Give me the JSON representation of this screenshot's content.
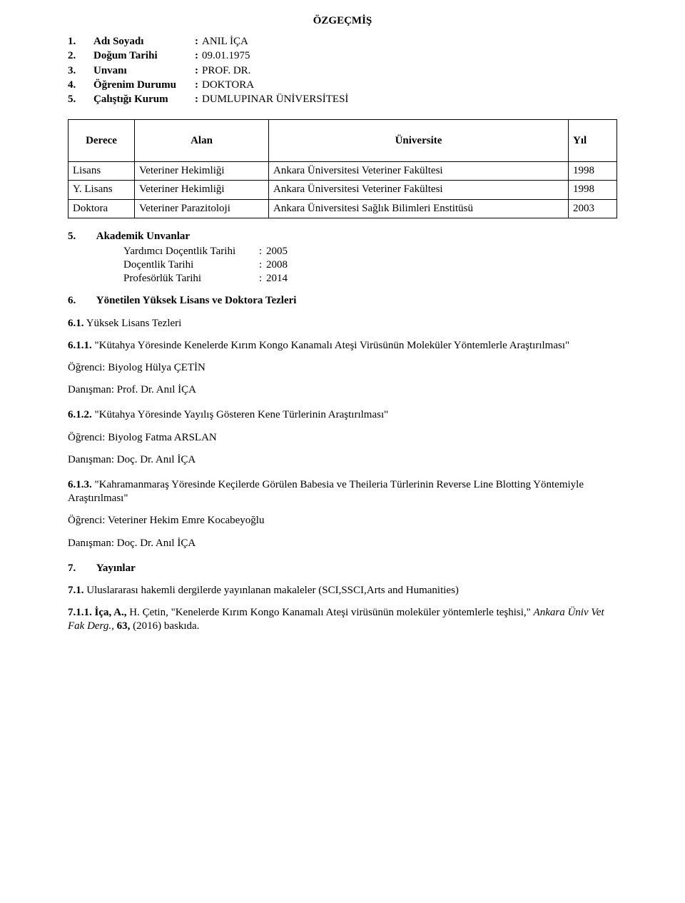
{
  "title": "ÖZGEÇMİŞ",
  "info": {
    "rows": [
      {
        "n": "1.",
        "label": "Adı Soyadı",
        "value": "ANIL İÇA"
      },
      {
        "n": "2.",
        "label": "Doğum Tarihi",
        "value": "09.01.1975"
      },
      {
        "n": "3.",
        "label": "Unvanı",
        "value": "PROF. DR."
      },
      {
        "n": "4.",
        "label": "Öğrenim Durumu",
        "value": "DOKTORA"
      },
      {
        "n": "5.",
        "label": "Çalıştığı Kurum",
        "value": "DUMLUPINAR ÜNİVERSİTESİ"
      }
    ]
  },
  "degree_table": {
    "headers": [
      "Derece",
      "Alan",
      "Üniversite",
      "Yıl"
    ],
    "rows": [
      [
        "Lisans",
        "Veteriner Hekimliği",
        "Ankara Üniversitesi Veteriner Fakültesi",
        "1998"
      ],
      [
        "Y. Lisans",
        "Veteriner Hekimliği",
        "Ankara Üniversitesi Veteriner Fakültesi",
        "1998"
      ],
      [
        "Doktora",
        "Veteriner Parazitoloji",
        "Ankara Üniversitesi Sağlık Bilimleri Enstitüsü",
        "2003"
      ]
    ]
  },
  "section5": {
    "num": "5.",
    "title": "Akademik Unvanlar",
    "rows": [
      {
        "label": "Yardımcı Doçentlik Tarihi",
        "value": "2005"
      },
      {
        "label": "Doçentlik Tarihi",
        "value": "2008"
      },
      {
        "label": "Profesörlük Tarihi",
        "value": "2014"
      }
    ]
  },
  "section6": {
    "num": "6.",
    "title": "Yönetilen Yüksek Lisans ve Doktora Tezleri"
  },
  "sec61_label": "6.1.",
  "sec61_text": " Yüksek Lisans Tezleri",
  "thesis611_label": "6.1.1.",
  "thesis611_text": " \"Kütahya Yöresinde Kenelerde Kırım Kongo Kanamalı Ateşi Virüsünün Moleküler Yöntemlerle Araştırılması\"",
  "thesis611_student": "Öğrenci: Biyolog Hülya ÇETİN",
  "thesis611_advisor": "Danışman: Prof. Dr. Anıl İÇA",
  "thesis612_label": "6.1.2.",
  "thesis612_text": " \"Kütahya Yöresinde Yayılış Gösteren Kene Türlerinin Araştırılması\"",
  "thesis612_student": "Öğrenci: Biyolog Fatma ARSLAN",
  "thesis612_advisor": "Danışman: Doç. Dr. Anıl İÇA",
  "thesis613_label": "6.1.3.",
  "thesis613_text": " \"Kahramanmaraş Yöresinde Keçilerde Görülen Babesia ve Theileria Türlerinin Reverse Line Blotting Yöntemiyle Araştırılması\"",
  "thesis613_student": "Öğrenci: Veteriner Hekim Emre Kocabeyoğlu",
  "thesis613_advisor": "Danışman: Doç. Dr. Anıl İÇA",
  "section7": {
    "num": "7.",
    "title": "Yayınlar"
  },
  "sec71_label": "7.1.",
  "sec71_text": " Uluslararası hakemli dergilerde yayınlanan makaleler (SCI,SSCI,Arts and Humanities)",
  "pub711_label": "7.1.1.",
  "pub711_authors": " İça, A.,",
  "pub711_rest": " H. Çetin, \"Kenelerde Kırım Kongo Kanamalı Ateşi virüsünün moleküler yöntemlerle teşhisi,\" ",
  "pub711_journal": "Ankara Üniv Vet Fak Derg.,",
  "pub711_vol": " 63,",
  "pub711_tail": " (2016) baskıda."
}
